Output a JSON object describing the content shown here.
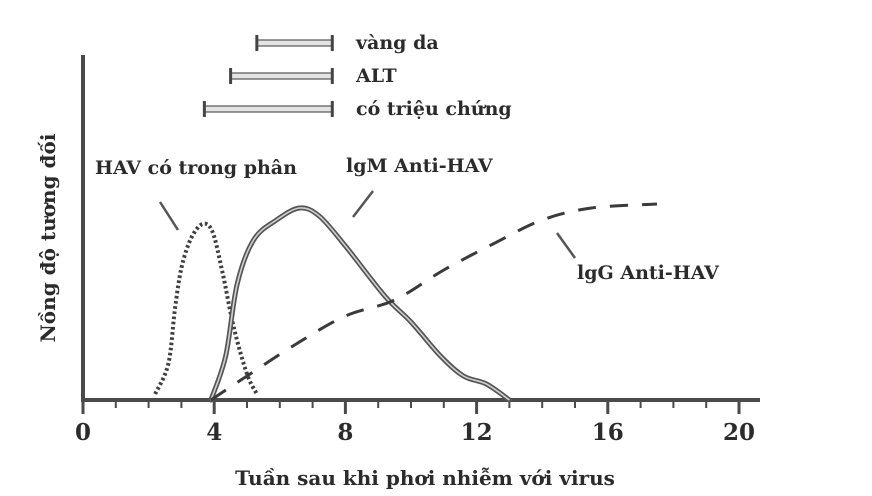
{
  "chart_data": {
    "type": "line",
    "xlabel": "Tuần sau khi phơi nhiễm với virus",
    "ylabel": "Nồng độ tương đối",
    "xlim": [
      0,
      20.5
    ],
    "ylim": [
      0,
      1
    ],
    "x_ticks": [
      "0",
      "4",
      "8",
      "12",
      "16",
      "20"
    ],
    "grid": false,
    "series": [
      {
        "name": "HAV có trong phân",
        "style": "dotted",
        "points": [
          [
            2.2,
            0.03
          ],
          [
            2.6,
            0.18
          ],
          [
            2.8,
            0.45
          ],
          [
            3.0,
            0.66
          ],
          [
            3.3,
            0.81
          ],
          [
            3.65,
            0.88
          ],
          [
            3.95,
            0.84
          ],
          [
            4.25,
            0.64
          ],
          [
            4.6,
            0.36
          ],
          [
            5.0,
            0.13
          ],
          [
            5.3,
            0.03
          ]
        ]
      },
      {
        "name": "IgM Anti-HAV",
        "style": "solid",
        "points": [
          [
            3.9,
            0.0
          ],
          [
            4.35,
            0.22
          ],
          [
            4.7,
            0.58
          ],
          [
            5.2,
            0.8
          ],
          [
            5.9,
            0.9
          ],
          [
            6.6,
            0.96
          ],
          [
            7.2,
            0.92
          ],
          [
            8.0,
            0.77
          ],
          [
            9.2,
            0.52
          ],
          [
            10.0,
            0.39
          ],
          [
            10.9,
            0.22
          ],
          [
            11.6,
            0.12
          ],
          [
            12.3,
            0.08
          ],
          [
            13.0,
            0.0
          ]
        ]
      },
      {
        "name": "IgG Anti-HAV",
        "style": "dashed",
        "points": [
          [
            3.9,
            0.0
          ],
          [
            5.0,
            0.12
          ],
          [
            6.5,
            0.28
          ],
          [
            8.0,
            0.42
          ],
          [
            9.5,
            0.5
          ],
          [
            11.0,
            0.65
          ],
          [
            12.5,
            0.78
          ],
          [
            14.0,
            0.9
          ],
          [
            15.5,
            0.96
          ],
          [
            17.5,
            0.98
          ]
        ]
      }
    ],
    "annotations": [
      {
        "text": "HAV có trong phân"
      },
      {
        "text": "lgM Anti-HAV"
      },
      {
        "text": "lgG Anti-HAV"
      }
    ],
    "interval_bars": [
      {
        "label": "vàng da",
        "start": 5.3,
        "end": 7.6
      },
      {
        "label": "ALT",
        "start": 4.5,
        "end": 7.6
      },
      {
        "label": "có triệu chứng",
        "start": 3.7,
        "end": 7.6
      }
    ]
  }
}
